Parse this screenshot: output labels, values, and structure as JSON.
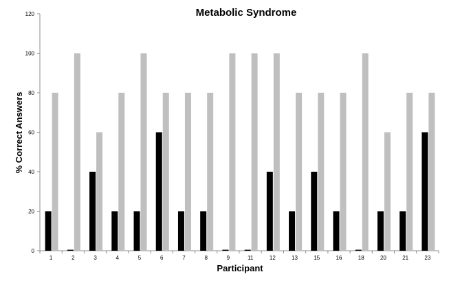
{
  "chart_data": {
    "type": "bar",
    "title": "Metabolic Syndrome",
    "xlabel": "Participant",
    "ylabel": "% Correct Answers",
    "ylim": [
      0,
      120
    ],
    "yticks": [
      "0",
      "20",
      "40",
      "60",
      "80",
      "100",
      "120"
    ],
    "categories": [
      "1",
      "2",
      "3",
      "4",
      "5",
      "6",
      "7",
      "8",
      "9",
      "11",
      "12",
      "13",
      "15",
      "16",
      "18",
      "20",
      "21",
      "23"
    ],
    "series": [
      {
        "color": "#000000",
        "values": [
          20,
          0.5,
          40,
          20,
          20,
          60,
          20,
          20,
          0.5,
          0.5,
          40,
          20,
          40,
          20,
          0.5,
          20,
          20,
          60
        ]
      },
      {
        "color": "#bfbfbf",
        "values": [
          80,
          100,
          60,
          80,
          100,
          80,
          80,
          80,
          100,
          100,
          100,
          80,
          80,
          80,
          100,
          60,
          80,
          80
        ]
      }
    ],
    "grid": false,
    "legend": "none"
  }
}
